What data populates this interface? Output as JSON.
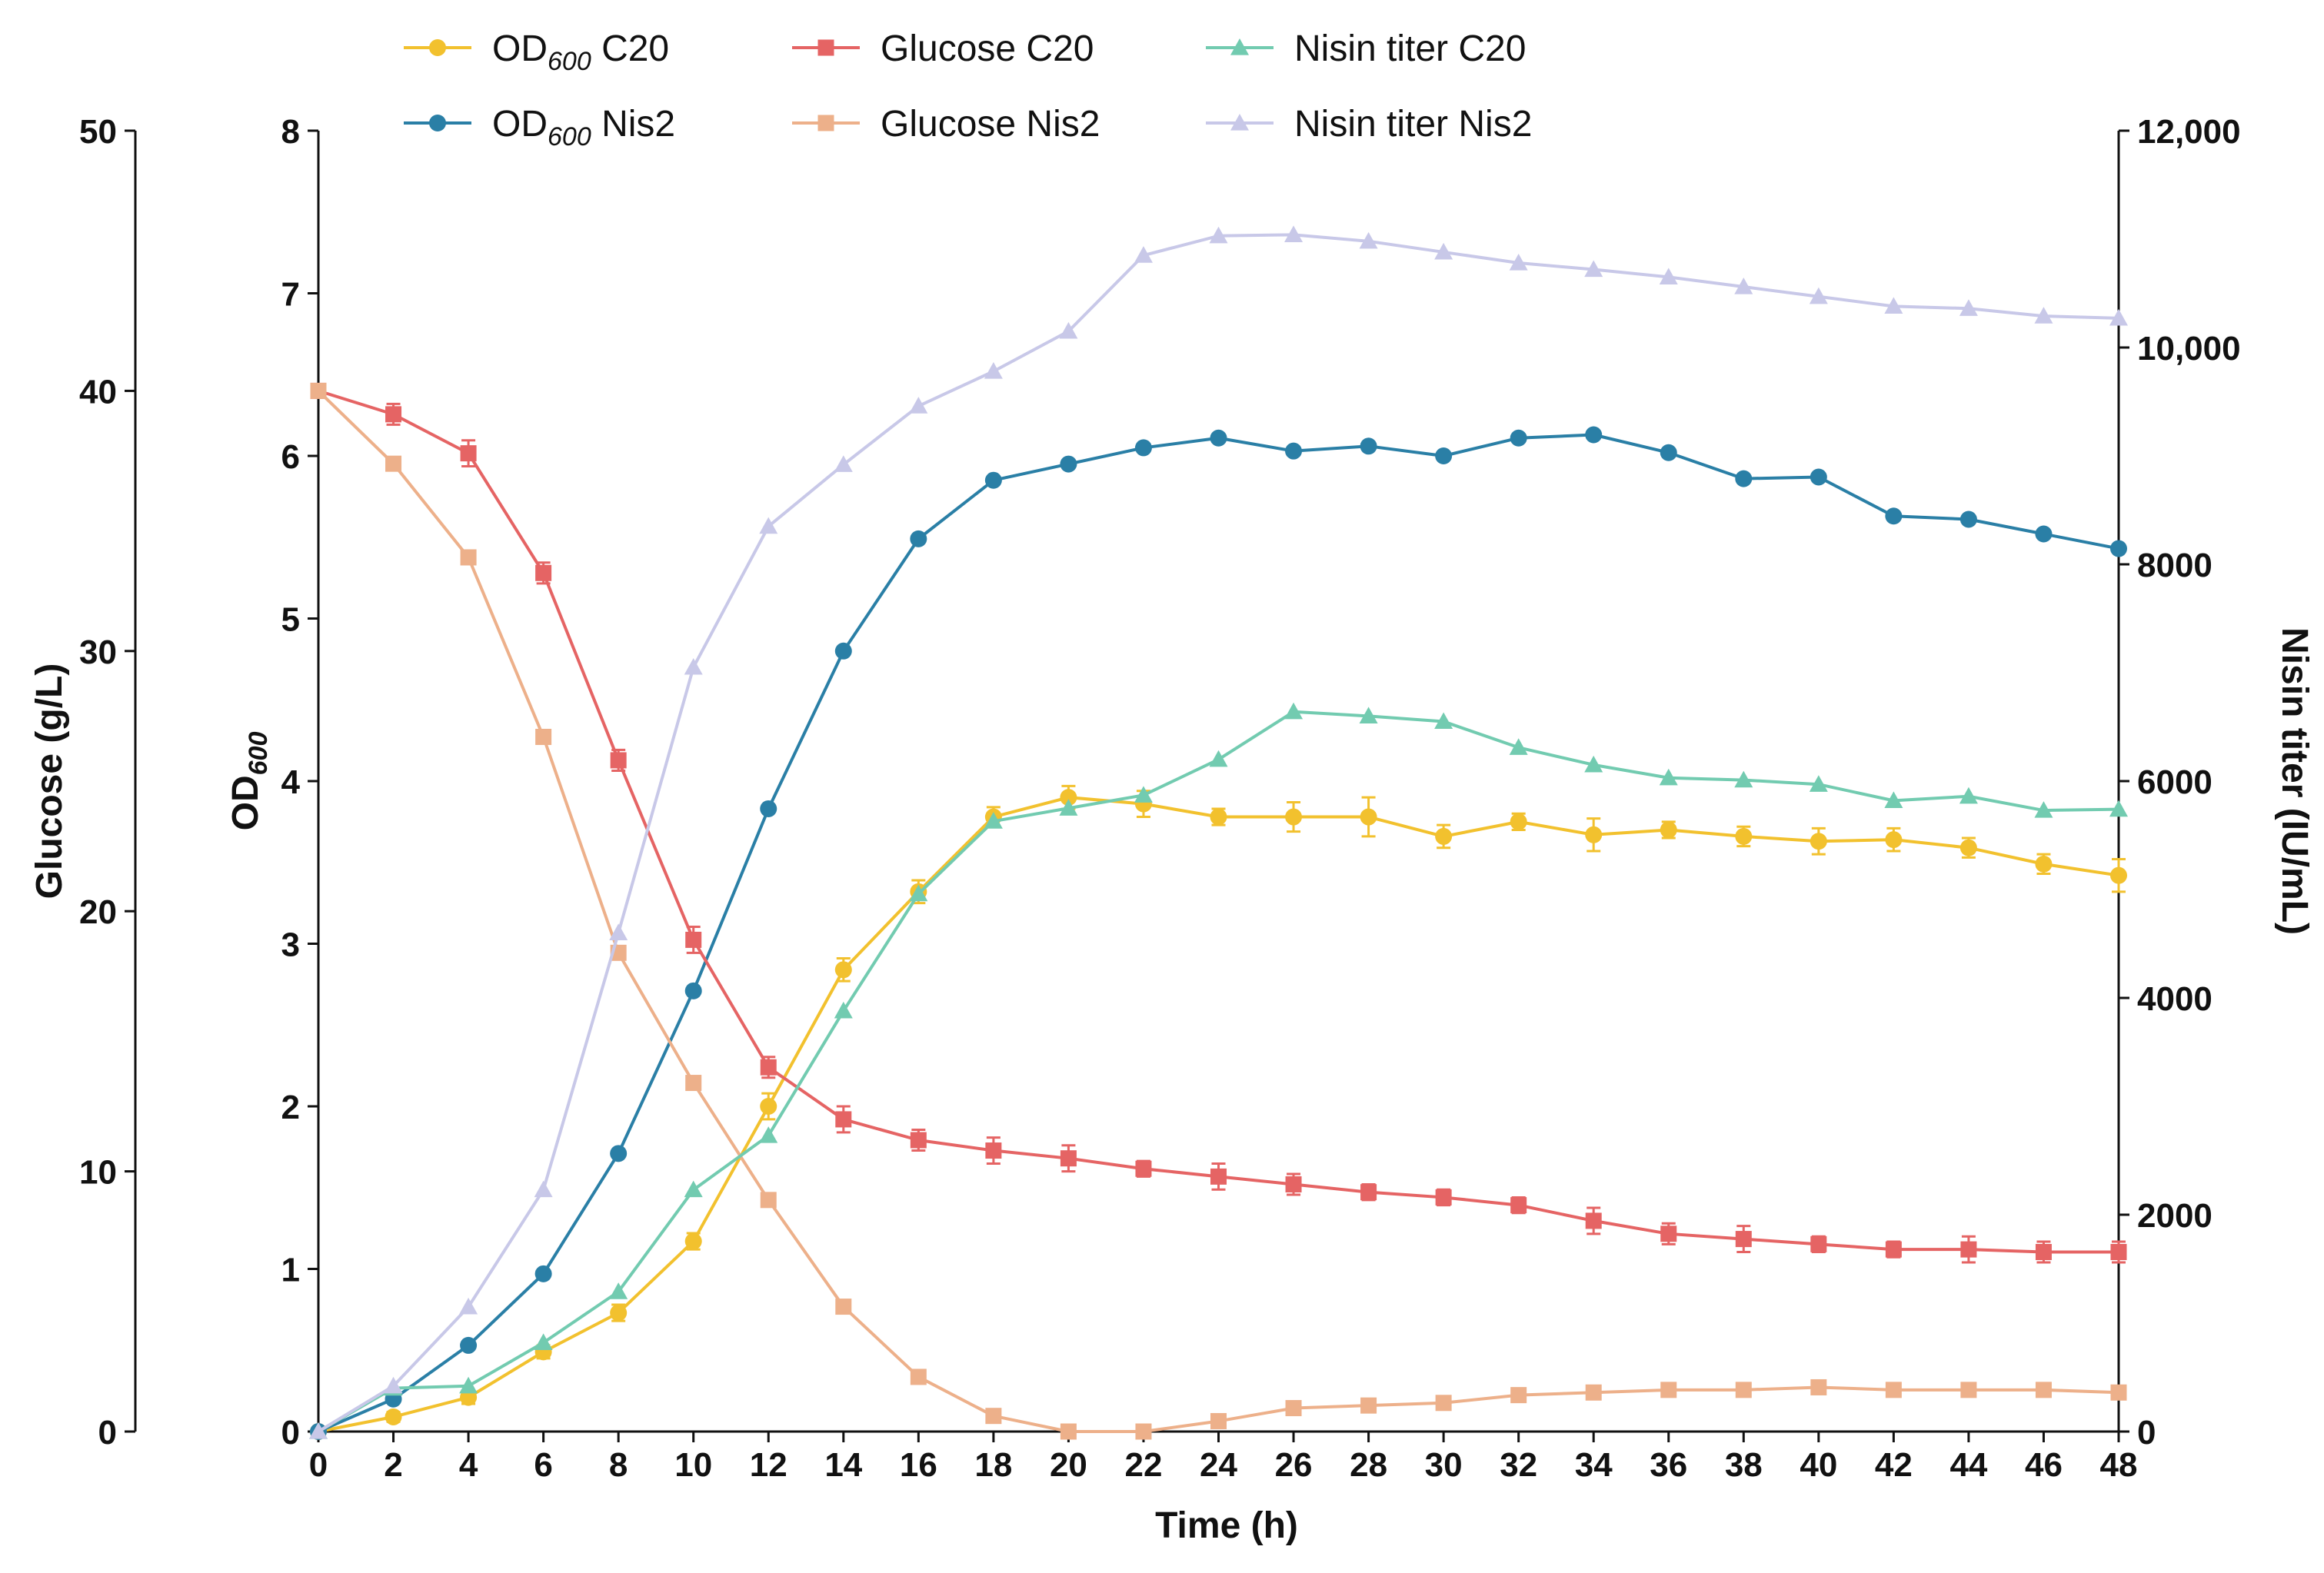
{
  "chart_data": {
    "type": "line",
    "xlabel": "Time (h)",
    "xlim": [
      0,
      48
    ],
    "x_ticks": [
      0,
      2,
      4,
      6,
      8,
      10,
      12,
      14,
      16,
      18,
      20,
      22,
      24,
      26,
      28,
      30,
      32,
      34,
      36,
      38,
      40,
      42,
      44,
      46,
      48
    ],
    "axes": {
      "od": {
        "label_main": "OD",
        "label_sub": "600",
        "ylim": [
          0,
          8
        ],
        "ticks": [
          "0",
          "1",
          "2",
          "3",
          "4",
          "5",
          "6",
          "7",
          "8"
        ]
      },
      "glucose": {
        "label": "Glucose (g/L)",
        "ylim": [
          0,
          50
        ],
        "ticks": [
          "0",
          "10",
          "20",
          "30",
          "40",
          "50"
        ]
      },
      "nisin": {
        "label": "Nisin titer (IU/mL)",
        "ylim": [
          0,
          12000
        ],
        "ticks": [
          "0",
          "2000",
          "4000",
          "6000",
          "8000",
          "10,000",
          "12,000"
        ]
      }
    },
    "x": [
      0,
      2,
      4,
      6,
      8,
      10,
      12,
      14,
      16,
      18,
      20,
      22,
      24,
      26,
      28,
      30,
      32,
      34,
      36,
      38,
      40,
      42,
      44,
      46,
      48
    ],
    "series": [
      {
        "key": "od_c20",
        "axis": "od",
        "marker": "circle",
        "color": "#f2c12e",
        "label_pre": "OD",
        "label_sub": "600",
        "label_post": " C20",
        "values": [
          0.0,
          0.09,
          0.21,
          0.49,
          0.73,
          1.17,
          2.0,
          2.84,
          3.32,
          3.78,
          3.9,
          3.86,
          3.78,
          3.78,
          3.78,
          3.66,
          3.75,
          3.67,
          3.7,
          3.66,
          3.63,
          3.64,
          3.59,
          3.49,
          3.42
        ],
        "errors": [
          0,
          0.03,
          0.04,
          0.04,
          0.05,
          0.05,
          0.08,
          0.07,
          0.07,
          0.06,
          0.07,
          0.08,
          0.05,
          0.09,
          0.12,
          0.07,
          0.05,
          0.1,
          0.05,
          0.06,
          0.08,
          0.07,
          0.06,
          0.06,
          0.1
        ]
      },
      {
        "key": "od_nis2",
        "axis": "od",
        "marker": "circle",
        "color": "#2a7fa6",
        "label_pre": "OD",
        "label_sub": "600",
        "label_post": " Nis2",
        "values": [
          0.0,
          0.2,
          0.53,
          0.97,
          1.71,
          2.71,
          3.83,
          4.8,
          5.49,
          5.85,
          5.95,
          6.05,
          6.11,
          6.03,
          6.06,
          6.0,
          6.11,
          6.13,
          6.02,
          5.86,
          5.87,
          5.63,
          5.61,
          5.52,
          5.43
        ]
      },
      {
        "key": "glucose_c20",
        "axis": "glucose",
        "marker": "square",
        "color": "#e56464",
        "label_pre": "Glucose C20",
        "label_sub": "",
        "label_post": "",
        "values": [
          40.0,
          39.1,
          37.6,
          33.0,
          25.8,
          18.9,
          14.0,
          12.0,
          11.2,
          10.8,
          10.5,
          10.1,
          9.8,
          9.5,
          9.2,
          9.0,
          8.7,
          8.1,
          7.6,
          7.4,
          7.2,
          7.0,
          7.0,
          6.9,
          6.9
        ],
        "errors": [
          0,
          0.4,
          0.5,
          0.4,
          0.4,
          0.5,
          0.4,
          0.5,
          0.4,
          0.5,
          0.5,
          0.3,
          0.5,
          0.4,
          0.3,
          0.3,
          0.3,
          0.5,
          0.4,
          0.5,
          0.3,
          0.3,
          0.5,
          0.4,
          0.4
        ]
      },
      {
        "key": "glucose_nis2",
        "axis": "glucose",
        "marker": "square",
        "color": "#edb08a",
        "label_pre": "Glucose Nis2",
        "label_sub": "",
        "label_post": "",
        "values": [
          40.0,
          37.2,
          33.6,
          26.7,
          18.4,
          13.4,
          8.9,
          4.8,
          2.1,
          0.6,
          0.0,
          0.0,
          0.4,
          0.9,
          1.0,
          1.1,
          1.4,
          1.5,
          1.6,
          1.6,
          1.7,
          1.6,
          1.6,
          1.6,
          1.5
        ]
      },
      {
        "key": "nisin_c20",
        "axis": "nisin",
        "marker": "triangle",
        "color": "#72cbb0",
        "label_pre": "Nisin titer C20",
        "label_sub": "",
        "label_post": "",
        "values": [
          0,
          400,
          420,
          820,
          1290,
          2230,
          2730,
          3880,
          4960,
          5630,
          5750,
          5870,
          6200,
          6640,
          6600,
          6550,
          6310,
          6150,
          6030,
          6010,
          5970,
          5820,
          5860,
          5730,
          5740
        ]
      },
      {
        "key": "nisin_nis2",
        "axis": "nisin",
        "marker": "triangle",
        "color": "#c8c8e8",
        "label_pre": "Nisin titer Nis2",
        "label_sub": "",
        "label_post": "",
        "values": [
          0,
          420,
          1150,
          2230,
          4600,
          7050,
          8350,
          8920,
          9460,
          9780,
          10150,
          10850,
          11030,
          11040,
          10980,
          10880,
          10780,
          10720,
          10650,
          10560,
          10470,
          10380,
          10360,
          10290,
          10270
        ]
      }
    ],
    "legend": {
      "placement": "top",
      "order": [
        "od_c20",
        "glucose_c20",
        "nisin_c20",
        "od_nis2",
        "glucose_nis2",
        "nisin_nis2"
      ]
    }
  }
}
